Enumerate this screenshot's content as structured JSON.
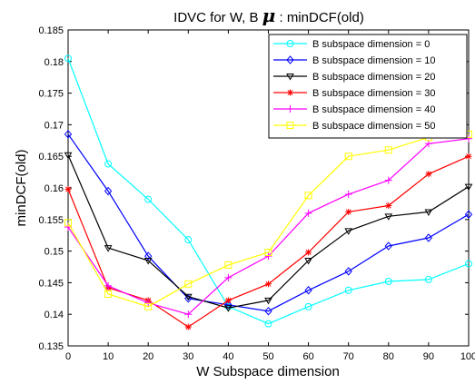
{
  "chart_data": {
    "type": "line",
    "title_main": "IDVC for W, B ",
    "title_symbol": "μ",
    "title_suffix": " : minDCF(old)",
    "xlabel": "W Subspace dimension",
    "ylabel": "minDCF(old)",
    "xlim": [
      0,
      100
    ],
    "ylim": [
      0.135,
      0.185
    ],
    "xticks": [
      0,
      10,
      20,
      30,
      40,
      50,
      60,
      70,
      80,
      90,
      100
    ],
    "xtick_labels": [
      "0",
      "10",
      "20",
      "30",
      "40",
      "50",
      "60",
      "70",
      "80",
      "90",
      "100"
    ],
    "yticks": [
      0.135,
      0.14,
      0.145,
      0.15,
      0.155,
      0.16,
      0.165,
      0.17,
      0.175,
      0.18,
      0.185
    ],
    "ytick_labels": [
      "0.135",
      "0.14",
      "0.145",
      "0.15",
      "0.155",
      "0.16",
      "0.165",
      "0.17",
      "0.175",
      "0.18",
      "0.185"
    ],
    "grid": false,
    "legend_position": "top-right",
    "x": [
      0,
      10,
      20,
      30,
      40,
      50,
      60,
      70,
      80,
      90,
      100
    ],
    "series": [
      {
        "name": "B subspace dimension = 0",
        "color": "#00ffff",
        "marker": "circle",
        "values": [
          0.1805,
          0.1638,
          0.1582,
          0.1518,
          0.1412,
          0.1385,
          0.1412,
          0.1438,
          0.1452,
          0.1455,
          0.148
        ]
      },
      {
        "name": "B subspace dimension = 10",
        "color": "#0000ff",
        "marker": "diamond",
        "values": [
          0.1685,
          0.1595,
          0.1492,
          0.1425,
          0.1415,
          0.1405,
          0.1438,
          0.1468,
          0.1508,
          0.1521,
          0.1558
        ]
      },
      {
        "name": "B subspace dimension = 20",
        "color": "#000000",
        "marker": "triangle-down",
        "values": [
          0.1652,
          0.1505,
          0.1485,
          0.1428,
          0.141,
          0.1422,
          0.1485,
          0.1532,
          0.1555,
          0.1562,
          0.1602
        ]
      },
      {
        "name": "B subspace dimension = 30",
        "color": "#ff0000",
        "marker": "star",
        "values": [
          0.1598,
          0.1442,
          0.1422,
          0.138,
          0.1422,
          0.1448,
          0.1498,
          0.1562,
          0.1572,
          0.1622,
          0.165
        ]
      },
      {
        "name": "B subspace dimension = 40",
        "color": "#ff00ff",
        "marker": "plus",
        "values": [
          0.1538,
          0.1445,
          0.1418,
          0.14,
          0.1458,
          0.1492,
          0.156,
          0.159,
          0.1612,
          0.167,
          0.1678
        ]
      },
      {
        "name": "B subspace dimension = 50",
        "color": "#ffff00",
        "marker": "square",
        "values": [
          0.1545,
          0.1432,
          0.1412,
          0.1448,
          0.1478,
          0.1498,
          0.1588,
          0.165,
          0.166,
          0.168,
          0.1685
        ]
      }
    ]
  }
}
